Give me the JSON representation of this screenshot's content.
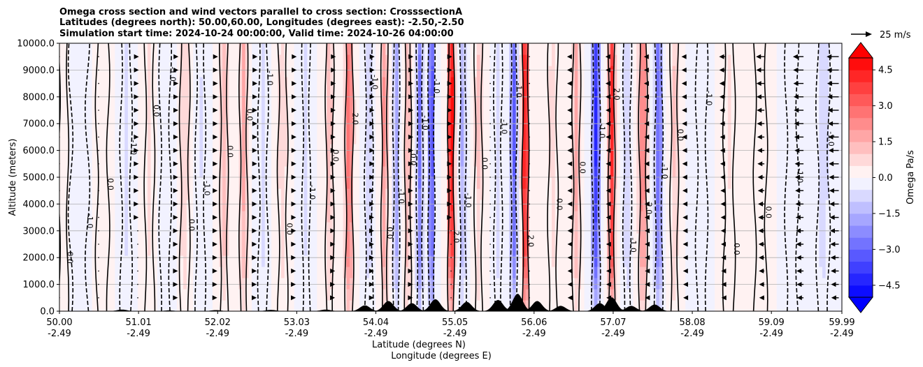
{
  "chart_data": {
    "type": "heatmap",
    "title_lines": [
      "Omega cross section and wind vectors parallel to cross section: CrosssectionA",
      "Latitudes (degrees north): 50.00,60.00, Longitudes (degrees east): -2.50,-2.50",
      "Simulation start time: 2024-10-24 00:00:00, Valid time: 2024-10-26 04:00:00"
    ],
    "xlabel": "Latitude (degrees N)",
    "xlabel2": "Longitude (degrees E)",
    "ylabel": "Altitude (meters)",
    "xlim": [
      50.0,
      59.99
    ],
    "ylim": [
      0,
      10000
    ],
    "x_ticks": [
      {
        "lat": "50.00",
        "lon": "-2.49",
        "v": 50.0
      },
      {
        "lat": "51.01",
        "lon": "-2.49",
        "v": 51.01
      },
      {
        "lat": "52.02",
        "lon": "-2.49",
        "v": 52.02
      },
      {
        "lat": "53.03",
        "lon": "-2.49",
        "v": 53.03
      },
      {
        "lat": "54.04",
        "lon": "-2.49",
        "v": 54.04
      },
      {
        "lat": "55.05",
        "lon": "-2.49",
        "v": 55.05
      },
      {
        "lat": "56.06",
        "lon": "-2.49",
        "v": 56.06
      },
      {
        "lat": "57.07",
        "lon": "-2.49",
        "v": 57.07
      },
      {
        "lat": "58.08",
        "lon": "-2.49",
        "v": 58.08
      },
      {
        "lat": "59.09",
        "lon": "-2.49",
        "v": 59.09
      },
      {
        "lat": "59.99",
        "lon": "-2.49",
        "v": 59.99
      }
    ],
    "y_ticks": [
      {
        "label": "0.0",
        "v": 0
      },
      {
        "label": "1000.0",
        "v": 1000
      },
      {
        "label": "2000.0",
        "v": 2000
      },
      {
        "label": "3000.0",
        "v": 3000
      },
      {
        "label": "4000.0",
        "v": 4000
      },
      {
        "label": "5000.0",
        "v": 5000
      },
      {
        "label": "6000.0",
        "v": 6000
      },
      {
        "label": "7000.0",
        "v": 7000
      },
      {
        "label": "8000.0",
        "v": 8000
      },
      {
        "label": "9000.0",
        "v": 9000
      },
      {
        "label": "10000.0",
        "v": 10000
      }
    ],
    "grid": "horizontal",
    "colorbar": {
      "label": "Omega Pa/s",
      "range": [
        -5.0,
        5.0
      ],
      "extend": "both",
      "ticks": [
        {
          "label": "4.5",
          "v": 4.5
        },
        {
          "label": "3.0",
          "v": 3.0
        },
        {
          "label": "1.5",
          "v": 1.5
        },
        {
          "label": "0.0",
          "v": 0.0
        },
        {
          "label": "−1.5",
          "v": -1.5
        },
        {
          "label": "−3.0",
          "v": -3.0
        },
        {
          "label": "−4.5",
          "v": -4.5
        }
      ],
      "colors": {
        "negative": "#0000ff",
        "zero": "#ffffff",
        "positive": "#ff0000"
      }
    },
    "quiver_key": {
      "label": "25 m/s"
    },
    "omega_bands": [
      {
        "lat": 50.05,
        "w": 0.06,
        "omega": 0.4
      },
      {
        "lat": 50.25,
        "w": 0.12,
        "omega": -0.2
      },
      {
        "lat": 50.55,
        "w": 0.08,
        "omega": 0.3
      },
      {
        "lat": 50.85,
        "w": 0.07,
        "omega": -0.6
      },
      {
        "lat": 51.15,
        "w": 0.06,
        "omega": 0.6
      },
      {
        "lat": 51.35,
        "w": 0.07,
        "omega": -0.4
      },
      {
        "lat": 51.6,
        "w": 0.06,
        "omega": 0.9
      },
      {
        "lat": 51.8,
        "w": 0.06,
        "omega": -0.5
      },
      {
        "lat": 52.1,
        "w": 0.05,
        "omega": 1.2
      },
      {
        "lat": 52.35,
        "w": 0.05,
        "omega": 1.6
      },
      {
        "lat": 52.6,
        "w": 0.06,
        "omega": -0.7
      },
      {
        "lat": 52.85,
        "w": 0.06,
        "omega": 0.8
      },
      {
        "lat": 53.15,
        "w": 0.05,
        "omega": -0.6
      },
      {
        "lat": 53.45,
        "w": 0.05,
        "omega": 1.2
      },
      {
        "lat": 53.7,
        "w": 0.05,
        "omega": 2.8
      },
      {
        "lat": 53.95,
        "w": 0.05,
        "omega": -0.9
      },
      {
        "lat": 54.15,
        "w": 0.04,
        "omega": 2.0
      },
      {
        "lat": 54.3,
        "w": 0.04,
        "omega": -1.8
      },
      {
        "lat": 54.45,
        "w": 0.04,
        "omega": 1.5
      },
      {
        "lat": 54.6,
        "w": 0.04,
        "omega": -2.5
      },
      {
        "lat": 54.75,
        "w": 0.04,
        "omega": -3.5
      },
      {
        "lat": 55.0,
        "w": 0.04,
        "omega": 5.0
      },
      {
        "lat": 55.15,
        "w": 0.04,
        "omega": -1.5
      },
      {
        "lat": 55.35,
        "w": 0.05,
        "omega": 1.0
      },
      {
        "lat": 55.6,
        "w": 0.05,
        "omega": -0.8
      },
      {
        "lat": 55.8,
        "w": 0.04,
        "omega": -3.0
      },
      {
        "lat": 55.95,
        "w": 0.04,
        "omega": 5.0
      },
      {
        "lat": 56.3,
        "w": 0.06,
        "omega": 0.7
      },
      {
        "lat": 56.6,
        "w": 0.05,
        "omega": 1.6
      },
      {
        "lat": 56.85,
        "w": 0.05,
        "omega": -3.8
      },
      {
        "lat": 57.05,
        "w": 0.04,
        "omega": 4.0
      },
      {
        "lat": 57.25,
        "w": 0.05,
        "omega": -0.9
      },
      {
        "lat": 57.45,
        "w": 0.05,
        "omega": 2.5
      },
      {
        "lat": 57.65,
        "w": 0.05,
        "omega": -2.8
      },
      {
        "lat": 57.85,
        "w": 0.05,
        "omega": 1.0
      },
      {
        "lat": 58.2,
        "w": 0.07,
        "omega": -0.4
      },
      {
        "lat": 58.55,
        "w": 0.07,
        "omega": 0.5
      },
      {
        "lat": 58.95,
        "w": 0.08,
        "omega": 0.3
      },
      {
        "lat": 59.35,
        "w": 0.08,
        "omega": -0.3
      },
      {
        "lat": 59.75,
        "w": 0.08,
        "omega": -0.8
      }
    ],
    "contour_label_values": [
      "0.0",
      "-1.0",
      "1.0",
      "2.0",
      "3.0",
      "-2.0"
    ],
    "wind_vectors": [
      {
        "lat": 50.0,
        "u": 0.3
      },
      {
        "lat": 50.5,
        "u": 1.0
      },
      {
        "lat": 51.0,
        "u": 1.5
      },
      {
        "lat": 51.5,
        "u": 2.0
      },
      {
        "lat": 52.0,
        "u": 2.5
      },
      {
        "lat": 52.5,
        "u": 3.0
      },
      {
        "lat": 53.0,
        "u": 3.0
      },
      {
        "lat": 53.5,
        "u": 3.0
      },
      {
        "lat": 54.0,
        "u": 2.5
      },
      {
        "lat": 54.5,
        "u": 2.0
      },
      {
        "lat": 55.0,
        "u": 1.5
      },
      {
        "lat": 55.5,
        "u": 0.5
      },
      {
        "lat": 56.0,
        "u": -1.0
      },
      {
        "lat": 56.5,
        "u": -2.0
      },
      {
        "lat": 57.0,
        "u": -3.0
      },
      {
        "lat": 57.5,
        "u": -4.0
      },
      {
        "lat": 58.0,
        "u": -6.0
      },
      {
        "lat": 58.5,
        "u": -8.0
      },
      {
        "lat": 59.0,
        "u": -11.0
      },
      {
        "lat": 59.5,
        "u": -14.0
      },
      {
        "lat": 59.95,
        "u": -16.0
      }
    ],
    "terrain_peaks": [
      {
        "lat": 50.8,
        "h": 60
      },
      {
        "lat": 51.4,
        "h": 30
      },
      {
        "lat": 52.0,
        "h": 40
      },
      {
        "lat": 52.7,
        "h": 50
      },
      {
        "lat": 53.4,
        "h": 60
      },
      {
        "lat": 53.9,
        "h": 220
      },
      {
        "lat": 54.2,
        "h": 380
      },
      {
        "lat": 54.5,
        "h": 300
      },
      {
        "lat": 54.8,
        "h": 450
      },
      {
        "lat": 55.2,
        "h": 350
      },
      {
        "lat": 55.6,
        "h": 420
      },
      {
        "lat": 55.85,
        "h": 650
      },
      {
        "lat": 56.1,
        "h": 380
      },
      {
        "lat": 56.4,
        "h": 200
      },
      {
        "lat": 56.9,
        "h": 300
      },
      {
        "lat": 57.05,
        "h": 520
      },
      {
        "lat": 57.3,
        "h": 200
      },
      {
        "lat": 57.6,
        "h": 250
      }
    ]
  }
}
